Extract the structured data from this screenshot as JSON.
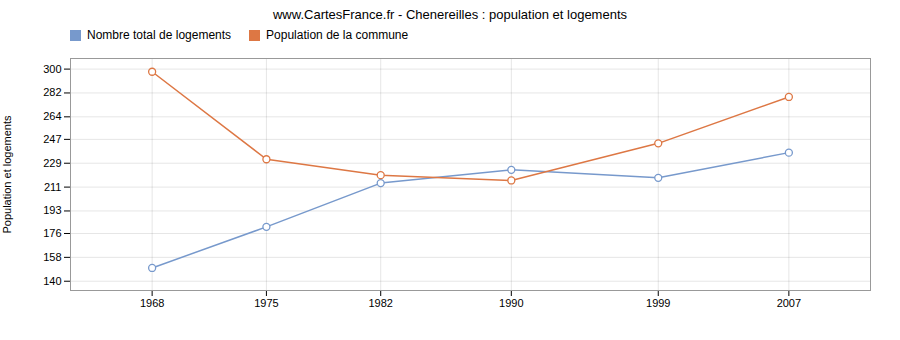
{
  "chart_data": {
    "type": "line",
    "title": "www.CartesFrance.fr - Chenereilles : population et logements",
    "ylabel": "Population et logements",
    "x": [
      1968,
      1975,
      1982,
      1990,
      1999,
      2007
    ],
    "series": [
      {
        "name": "Nombre total de logements",
        "color": "#7799cc",
        "marker": "circle",
        "values": [
          150,
          181,
          214,
          224,
          218,
          237
        ]
      },
      {
        "name": "Population de la commune",
        "color": "#dd7744",
        "marker": "circle",
        "values": [
          298,
          232,
          220,
          216,
          244,
          279
        ]
      }
    ],
    "xlim": [
      1963,
      2012
    ],
    "xticks": [
      1968,
      1975,
      1982,
      1990,
      1999,
      2007
    ],
    "ylim": [
      133,
      308
    ],
    "yticks": [
      140,
      158,
      176,
      193,
      211,
      229,
      247,
      264,
      282,
      300
    ],
    "grid": true,
    "legend": "upper left"
  }
}
